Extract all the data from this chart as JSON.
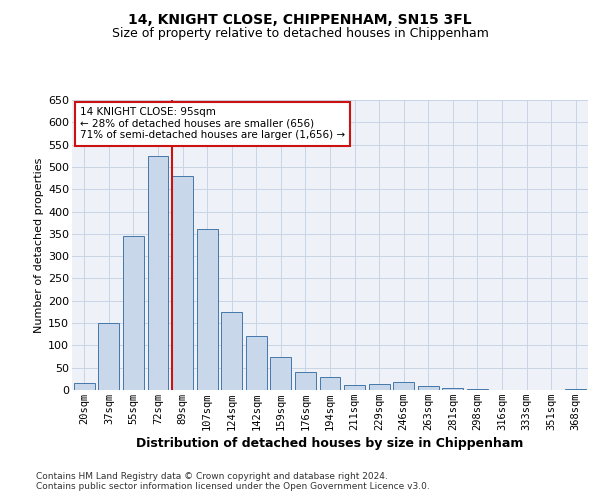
{
  "title": "14, KNIGHT CLOSE, CHIPPENHAM, SN15 3FL",
  "subtitle": "Size of property relative to detached houses in Chippenham",
  "xlabel": "Distribution of detached houses by size in Chippenham",
  "ylabel": "Number of detached properties",
  "categories": [
    "20sqm",
    "37sqm",
    "55sqm",
    "72sqm",
    "89sqm",
    "107sqm",
    "124sqm",
    "142sqm",
    "159sqm",
    "176sqm",
    "194sqm",
    "211sqm",
    "229sqm",
    "246sqm",
    "263sqm",
    "281sqm",
    "298sqm",
    "316sqm",
    "333sqm",
    "351sqm",
    "368sqm"
  ],
  "values": [
    15,
    150,
    345,
    525,
    480,
    360,
    175,
    120,
    75,
    40,
    30,
    12,
    13,
    18,
    8,
    5,
    2,
    1,
    1,
    0,
    3
  ],
  "bar_color": "#c8d8ea",
  "bar_edge_color": "#4477aa",
  "vline_index": 4,
  "vline_color": "#cc1111",
  "annotation_line1": "14 KNIGHT CLOSE: 95sqm",
  "annotation_line2": "← 28% of detached houses are smaller (656)",
  "annotation_line3": "71% of semi-detached houses are larger (1,656) →",
  "annotation_box_facecolor": "#ffffff",
  "annotation_box_edgecolor": "#cc1111",
  "grid_color": "#c8d4e4",
  "ylim_max": 650,
  "ytick_step": 50,
  "bg_color": "#eef2f8",
  "footer1": "Contains HM Land Registry data © Crown copyright and database right 2024.",
  "footer2": "Contains public sector information licensed under the Open Government Licence v3.0.",
  "title_fontsize": 10,
  "subtitle_fontsize": 9,
  "ylabel_fontsize": 8,
  "xlabel_fontsize": 9,
  "tick_fontsize": 7.5,
  "annotation_fontsize": 7.5,
  "footer_fontsize": 6.5
}
